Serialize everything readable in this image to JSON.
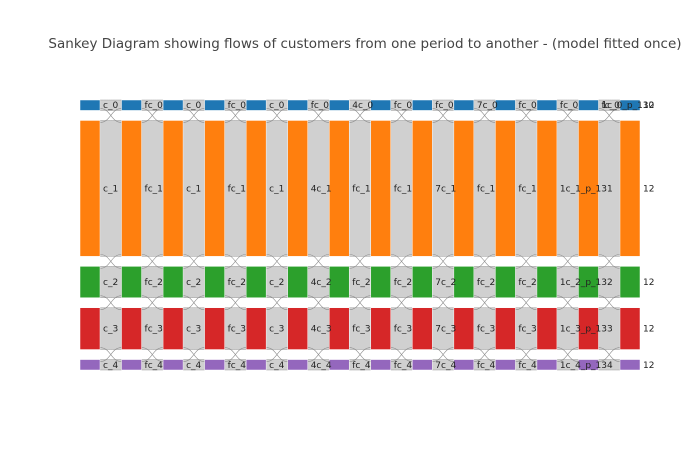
{
  "chart_data": {
    "type": "sankey",
    "title": "Sankey Diagram showing flows of customers from one period to another - (model fitted once)",
    "clusters": [
      {
        "index": 0,
        "color": "#1f77b4",
        "size": 1
      },
      {
        "index": 1,
        "color": "#ff7f0e",
        "size": 13
      },
      {
        "index": 2,
        "color": "#2ca02c",
        "size": 3
      },
      {
        "index": 3,
        "color": "#d62728",
        "size": 4
      },
      {
        "index": 4,
        "color": "#9467bd",
        "size": 1
      }
    ],
    "node_labels": [
      [
        "c_0",
        "fc_0",
        "c_0",
        "fc_0",
        "c_0",
        "fc_0",
        "4c_0",
        "fc_0",
        "fc_0",
        "7c_0",
        "fc_0",
        "fc_0",
        "fc_0",
        "1c_0_p_130"
      ],
      [
        "c_1",
        "fc_1",
        "c_1",
        "fc_1",
        "c_1",
        "4c_1",
        "fc_1",
        "fc_1",
        "7c_1",
        "fc_1",
        "fc_1",
        "1c_1_p_131"
      ],
      [
        "c_2",
        "fc_2",
        "c_2",
        "fc_2",
        "c_2",
        "4c_2",
        "fc_2",
        "fc_2",
        "7c_2",
        "fc_2",
        "fc_2",
        "1c_2_p_132"
      ],
      [
        "c_3",
        "fc_3",
        "c_3",
        "fc_3",
        "c_3",
        "4c_3",
        "fc_3",
        "fc_3",
        "7c_3",
        "fc_3",
        "fc_3",
        "1c_3_p_133"
      ],
      [
        "c_4",
        "fc_4",
        "c_4",
        "fc_4",
        "c_4",
        "4c_4",
        "fc_4",
        "fc_4",
        "7c_4",
        "fc_4",
        "fc_4",
        "1c_4_p_134"
      ]
    ],
    "last_column_labels": [
      "12",
      "12",
      "12",
      "12",
      "12"
    ],
    "periods": 14
  }
}
